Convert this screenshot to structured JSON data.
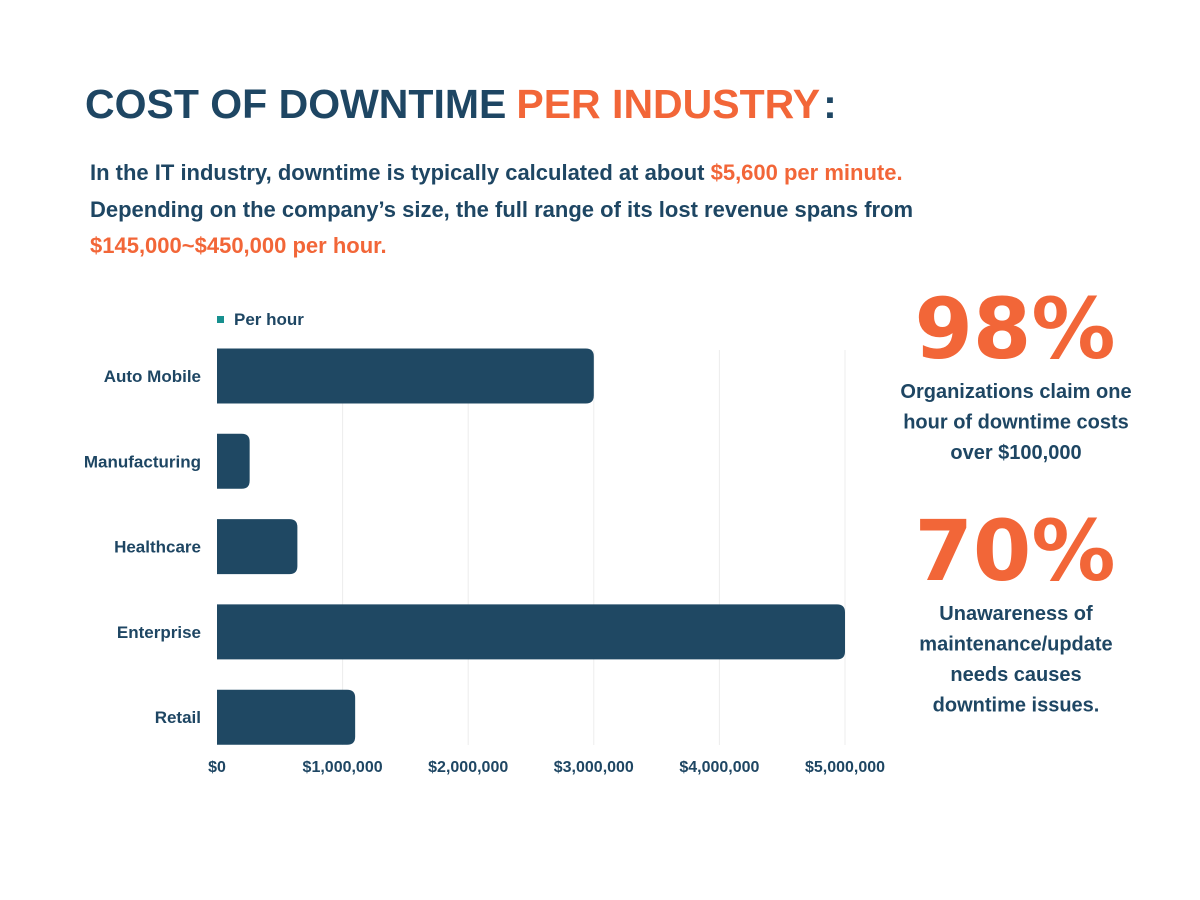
{
  "title": {
    "part1": "COST OF DOWNTIME",
    "part2": "PER INDUSTRY",
    "part3": ":"
  },
  "intro": [
    [
      "In the IT industry, downtime is typically calculated at about ",
      "$5,600 per minute."
    ],
    [
      "Depending on the company’s size, the full range of its lost revenue spans from"
    ],
    [
      "$145,000~$450,000 per hour."
    ]
  ],
  "chart_data": {
    "type": "bar",
    "orientation": "horizontal",
    "categories": [
      "Auto Mobile",
      "Manufacturing",
      "Healthcare",
      "Enterprise",
      "Retail"
    ],
    "series": [
      {
        "name": "Per hour",
        "color": "#1f4863",
        "legend_color": "#17908f",
        "values": [
          3000000,
          260000,
          640000,
          5000000,
          1100000
        ]
      }
    ],
    "xlim": [
      0,
      5000000
    ],
    "xticks": [
      {
        "value": 0,
        "label": "$0"
      },
      {
        "value": 1000000,
        "label": "$1,000,000"
      },
      {
        "value": 2000000,
        "label": "$2,000,000"
      },
      {
        "value": 3000000,
        "label": "$3,000,000"
      },
      {
        "value": 4000000,
        "label": "$4,000,000"
      },
      {
        "value": 5000000,
        "label": "$5,000,000"
      }
    ],
    "grid": true
  },
  "stats": [
    {
      "figure": "98%",
      "lines": [
        "Organizations claim one",
        "hour of downtime costs",
        "over $100,000"
      ]
    },
    {
      "figure": "70%",
      "lines": [
        "Unawareness of",
        "maintenance/update",
        "needs causes",
        "downtime issues."
      ]
    }
  ]
}
